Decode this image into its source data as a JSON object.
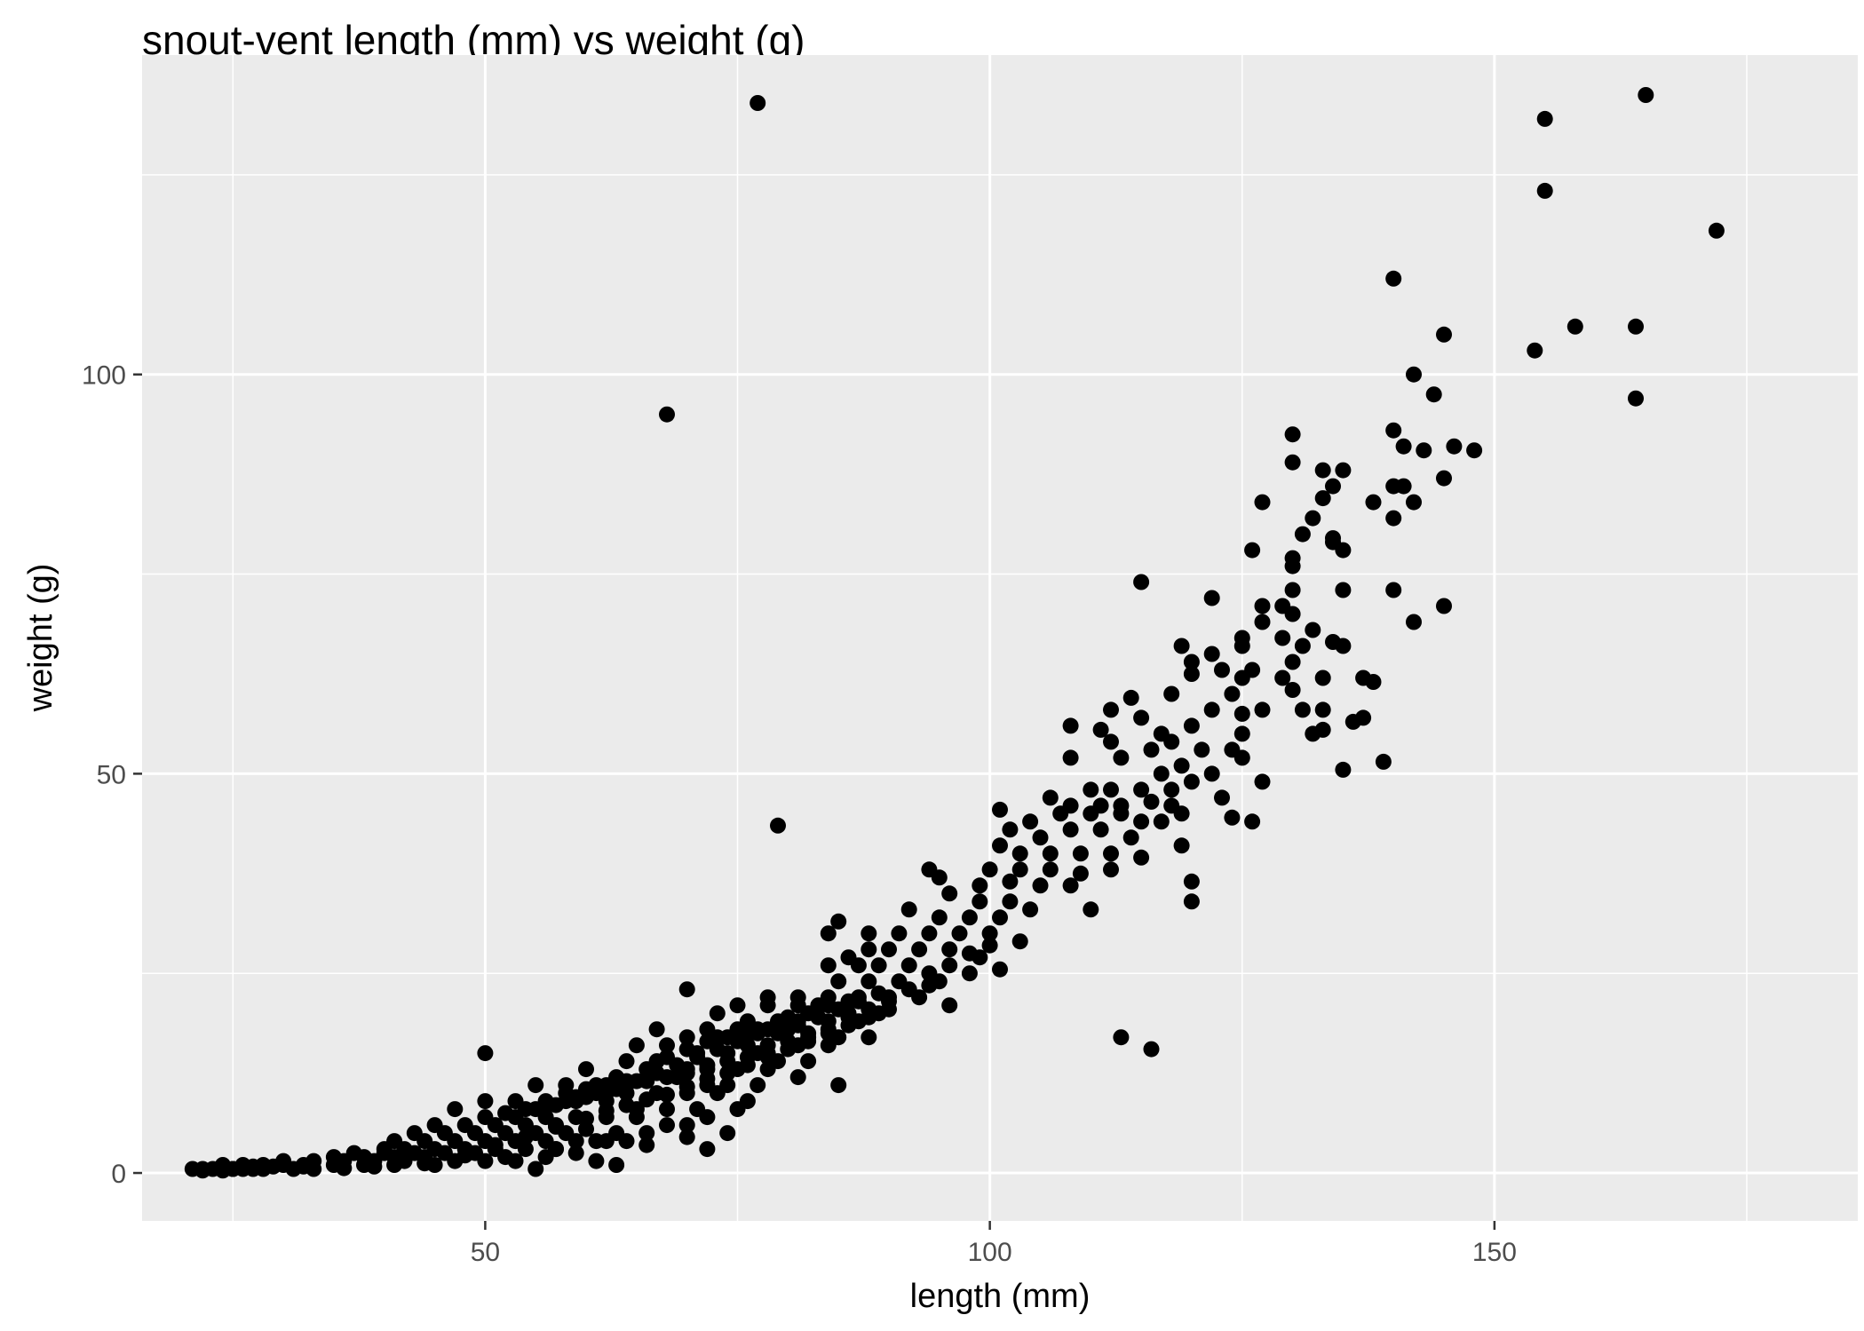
{
  "chart_data": {
    "type": "scatter",
    "title": "snout-vent length (mm) vs weight (g)",
    "xlabel": "length (mm)",
    "ylabel": "weight (g)",
    "xlim": [
      16,
      186
    ],
    "ylim": [
      -6,
      140
    ],
    "x_major_ticks": [
      50,
      100,
      150
    ],
    "x_minor_ticks": [
      25,
      75,
      125,
      175
    ],
    "y_major_ticks": [
      0,
      50,
      100
    ],
    "y_minor_ticks": [
      25,
      75,
      125
    ],
    "grid": true,
    "legend": "none",
    "colors": {
      "panel": "#ebebeb",
      "grid": "#ffffff",
      "point": "#000000",
      "tick_text": "#4d4d4d",
      "tick_mark": "#333333"
    },
    "points": [
      [
        77,
        134
      ],
      [
        165,
        135
      ],
      [
        155,
        132
      ],
      [
        155,
        123
      ],
      [
        172,
        118
      ],
      [
        140,
        112
      ],
      [
        145,
        105
      ],
      [
        158,
        106
      ],
      [
        164,
        106
      ],
      [
        154,
        103
      ],
      [
        142,
        100
      ],
      [
        144,
        97.5
      ],
      [
        164,
        97
      ],
      [
        68,
        95
      ],
      [
        130,
        92.5
      ],
      [
        140,
        93
      ],
      [
        141,
        91
      ],
      [
        143,
        90.5
      ],
      [
        146,
        91
      ],
      [
        148,
        90.5
      ],
      [
        130,
        89
      ],
      [
        133,
        88
      ],
      [
        135,
        88
      ],
      [
        140,
        86
      ],
      [
        141,
        86
      ],
      [
        145,
        87
      ],
      [
        134,
        86
      ],
      [
        138,
        84
      ],
      [
        142,
        84
      ],
      [
        127,
        84
      ],
      [
        133,
        84.5
      ],
      [
        132,
        82
      ],
      [
        140,
        82
      ],
      [
        131,
        80
      ],
      [
        134,
        79
      ],
      [
        134,
        79.5
      ],
      [
        135,
        78
      ],
      [
        126,
        78
      ],
      [
        130,
        77
      ],
      [
        130,
        76
      ],
      [
        115,
        74
      ],
      [
        140,
        73
      ],
      [
        135,
        73
      ],
      [
        130,
        73
      ],
      [
        145,
        71
      ],
      [
        122,
        72
      ],
      [
        127,
        71
      ],
      [
        129,
        71
      ],
      [
        130,
        70
      ],
      [
        127,
        69
      ],
      [
        132,
        68
      ],
      [
        142,
        69
      ],
      [
        129,
        67
      ],
      [
        131,
        66
      ],
      [
        134,
        66.5
      ],
      [
        135,
        66
      ],
      [
        119,
        66
      ],
      [
        125,
        67
      ],
      [
        125,
        66
      ],
      [
        122,
        65
      ],
      [
        126,
        63
      ],
      [
        130,
        64
      ],
      [
        120,
        64
      ],
      [
        123,
        63
      ],
      [
        129,
        62
      ],
      [
        133,
        62
      ],
      [
        137,
        62
      ],
      [
        138,
        61.5
      ],
      [
        120,
        62.5
      ],
      [
        125,
        62
      ],
      [
        130,
        60.5
      ],
      [
        118,
        60
      ],
      [
        114,
        59.5
      ],
      [
        122,
        58
      ],
      [
        124,
        60
      ],
      [
        127,
        58
      ],
      [
        131,
        58
      ],
      [
        133,
        58
      ],
      [
        112,
        58
      ],
      [
        115,
        57
      ],
      [
        125,
        57.5
      ],
      [
        136,
        56.5
      ],
      [
        137,
        57
      ],
      [
        108,
        56
      ],
      [
        111,
        55.5
      ],
      [
        117,
        55
      ],
      [
        120,
        56
      ],
      [
        125,
        55
      ],
      [
        132,
        55
      ],
      [
        133,
        55.5
      ],
      [
        112,
        54
      ],
      [
        116,
        53
      ],
      [
        118,
        54
      ],
      [
        121,
        53
      ],
      [
        124,
        53
      ],
      [
        125,
        52
      ],
      [
        108,
        52
      ],
      [
        113,
        52
      ],
      [
        139,
        51.5
      ],
      [
        135,
        50.5
      ],
      [
        127,
        49
      ],
      [
        117,
        50
      ],
      [
        119,
        51
      ],
      [
        122,
        50
      ],
      [
        110,
        48
      ],
      [
        112,
        48
      ],
      [
        115,
        48
      ],
      [
        118,
        48
      ],
      [
        120,
        49
      ],
      [
        106,
        47
      ],
      [
        108,
        46
      ],
      [
        111,
        46
      ],
      [
        113,
        46
      ],
      [
        116,
        46.5
      ],
      [
        118,
        46
      ],
      [
        123,
        47
      ],
      [
        101,
        45.5
      ],
      [
        104,
        44
      ],
      [
        107,
        45
      ],
      [
        110,
        45
      ],
      [
        113,
        45
      ],
      [
        115,
        44
      ],
      [
        117,
        44
      ],
      [
        119,
        45
      ],
      [
        124,
        44.5
      ],
      [
        126,
        44
      ],
      [
        79,
        43.5
      ],
      [
        102,
        43
      ],
      [
        105,
        42
      ],
      [
        108,
        43
      ],
      [
        111,
        43
      ],
      [
        114,
        42
      ],
      [
        119,
        41
      ],
      [
        101,
        41
      ],
      [
        103,
        40
      ],
      [
        106,
        40
      ],
      [
        109,
        40
      ],
      [
        112,
        40
      ],
      [
        115,
        39.5
      ],
      [
        100,
        38
      ],
      [
        103,
        38
      ],
      [
        106,
        38
      ],
      [
        109,
        37.5
      ],
      [
        112,
        38
      ],
      [
        94,
        38
      ],
      [
        95,
        37
      ],
      [
        99,
        36
      ],
      [
        102,
        36.5
      ],
      [
        105,
        36
      ],
      [
        108,
        36
      ],
      [
        120,
        36.5
      ],
      [
        96,
        35
      ],
      [
        99,
        34
      ],
      [
        102,
        34
      ],
      [
        104,
        33
      ],
      [
        110,
        33
      ],
      [
        120,
        34
      ],
      [
        92,
        33
      ],
      [
        95,
        32
      ],
      [
        98,
        32
      ],
      [
        101,
        32
      ],
      [
        85,
        31.5
      ],
      [
        88,
        30
      ],
      [
        91,
        30
      ],
      [
        94,
        30
      ],
      [
        97,
        30
      ],
      [
        100,
        30
      ],
      [
        103,
        29
      ],
      [
        84,
        30
      ],
      [
        88,
        28
      ],
      [
        90,
        28
      ],
      [
        93,
        28
      ],
      [
        96,
        28
      ],
      [
        99,
        27
      ],
      [
        86,
        27
      ],
      [
        84,
        26
      ],
      [
        87,
        26
      ],
      [
        89,
        26
      ],
      [
        92,
        26
      ],
      [
        94,
        25
      ],
      [
        101,
        25.5
      ],
      [
        85,
        24
      ],
      [
        88,
        24
      ],
      [
        91,
        24
      ],
      [
        95,
        24
      ],
      [
        98,
        25
      ],
      [
        70,
        23
      ],
      [
        78,
        22
      ],
      [
        81,
        22
      ],
      [
        84,
        22
      ],
      [
        87,
        22
      ],
      [
        90,
        22
      ],
      [
        93,
        22
      ],
      [
        75,
        21
      ],
      [
        78,
        21
      ],
      [
        81,
        21
      ],
      [
        83,
        21
      ],
      [
        86,
        20
      ],
      [
        89,
        20
      ],
      [
        96,
        21
      ],
      [
        73,
        20
      ],
      [
        76,
        19
      ],
      [
        79,
        19
      ],
      [
        81,
        19
      ],
      [
        84,
        19
      ],
      [
        87,
        19
      ],
      [
        72,
        18
      ],
      [
        75,
        18
      ],
      [
        77,
        18
      ],
      [
        80,
        18
      ],
      [
        82,
        17
      ],
      [
        85,
        17
      ],
      [
        88,
        17
      ],
      [
        67,
        18
      ],
      [
        70,
        17
      ],
      [
        73,
        17
      ],
      [
        76,
        16
      ],
      [
        78,
        16
      ],
      [
        81,
        16
      ],
      [
        84,
        16
      ],
      [
        113,
        17
      ],
      [
        116,
        15.5
      ],
      [
        50,
        15
      ],
      [
        65,
        16
      ],
      [
        68,
        16
      ],
      [
        71,
        15
      ],
      [
        74,
        15
      ],
      [
        77,
        15
      ],
      [
        79,
        14
      ],
      [
        82,
        14
      ],
      [
        64,
        14
      ],
      [
        67,
        14
      ],
      [
        70,
        13
      ],
      [
        72,
        13
      ],
      [
        75,
        13
      ],
      [
        78,
        13
      ],
      [
        81,
        12
      ],
      [
        60,
        13
      ],
      [
        63,
        12
      ],
      [
        66,
        12
      ],
      [
        69,
        12
      ],
      [
        72,
        11
      ],
      [
        74,
        11
      ],
      [
        85,
        11
      ],
      [
        77,
        11
      ],
      [
        55,
        11
      ],
      [
        58,
        11
      ],
      [
        61,
        11
      ],
      [
        64,
        10
      ],
      [
        67,
        10
      ],
      [
        70,
        10
      ],
      [
        73,
        10
      ],
      [
        76,
        9
      ],
      [
        50,
        9
      ],
      [
        53,
        9
      ],
      [
        56,
        9
      ],
      [
        59,
        9
      ],
      [
        62,
        9
      ],
      [
        65,
        8
      ],
      [
        68,
        8
      ],
      [
        71,
        8
      ],
      [
        75,
        8
      ],
      [
        47,
        8
      ],
      [
        50,
        7
      ],
      [
        53,
        7
      ],
      [
        56,
        7
      ],
      [
        59,
        7
      ],
      [
        62,
        7
      ],
      [
        65,
        7
      ],
      [
        68,
        6
      ],
      [
        70,
        6
      ],
      [
        72,
        7
      ],
      [
        45,
        6
      ],
      [
        48,
        6
      ],
      [
        51,
        6
      ],
      [
        54,
        6
      ],
      [
        57,
        6
      ],
      [
        60,
        5.5
      ],
      [
        63,
        5
      ],
      [
        66,
        5
      ],
      [
        74,
        5
      ],
      [
        43,
        5
      ],
      [
        46,
        5
      ],
      [
        49,
        5
      ],
      [
        52,
        5
      ],
      [
        55,
        5
      ],
      [
        58,
        5
      ],
      [
        61,
        4
      ],
      [
        64,
        4
      ],
      [
        41,
        4
      ],
      [
        44,
        4
      ],
      [
        47,
        4
      ],
      [
        50,
        4
      ],
      [
        53,
        4
      ],
      [
        56,
        4
      ],
      [
        59,
        4
      ],
      [
        40,
        3
      ],
      [
        42,
        3
      ],
      [
        45,
        3
      ],
      [
        48,
        3
      ],
      [
        51,
        3
      ],
      [
        54,
        3
      ],
      [
        57,
        3
      ],
      [
        72,
        3
      ],
      [
        37,
        2.5
      ],
      [
        40,
        2.5
      ],
      [
        43,
        2.5
      ],
      [
        46,
        2.5
      ],
      [
        49,
        2.5
      ],
      [
        52,
        2
      ],
      [
        56,
        2
      ],
      [
        61,
        1.5
      ],
      [
        63,
        1
      ],
      [
        53,
        1.5
      ],
      [
        35,
        2
      ],
      [
        38,
        2
      ],
      [
        41,
        2
      ],
      [
        44,
        2
      ],
      [
        47,
        1.5
      ],
      [
        50,
        1.5
      ],
      [
        55,
        0.5
      ],
      [
        33,
        1.5
      ],
      [
        36,
        1.5
      ],
      [
        39,
        1.5
      ],
      [
        42,
        1.5
      ],
      [
        45,
        1
      ],
      [
        30,
        1.5
      ],
      [
        32,
        1
      ],
      [
        35,
        1
      ],
      [
        38,
        1
      ],
      [
        41,
        1
      ],
      [
        28,
        1
      ],
      [
        30,
        1
      ],
      [
        32,
        0.8
      ],
      [
        26,
        1
      ],
      [
        27,
        0.5
      ],
      [
        29,
        0.8
      ],
      [
        31,
        0.5
      ],
      [
        24,
        1
      ],
      [
        25,
        0.5
      ],
      [
        27,
        0.8
      ],
      [
        22,
        0.5
      ],
      [
        23,
        0.5
      ],
      [
        24,
        0.3
      ],
      [
        25,
        0.5
      ],
      [
        26,
        0.5
      ],
      [
        28,
        0.5
      ],
      [
        21,
        0.5
      ],
      [
        22,
        0.3
      ],
      [
        33,
        0.5
      ],
      [
        36,
        0.6
      ],
      [
        39,
        0.8
      ],
      [
        44,
        1.2
      ],
      [
        48,
        2.2
      ],
      [
        51,
        3.5
      ],
      [
        54,
        4.5
      ],
      [
        57,
        5.8
      ],
      [
        60,
        6.8
      ],
      [
        62,
        7.8
      ],
      [
        64,
        8.5
      ],
      [
        66,
        9.2
      ],
      [
        68,
        9.8
      ],
      [
        70,
        10.8
      ],
      [
        72,
        11.8
      ],
      [
        74,
        12.5
      ],
      [
        76,
        13.5
      ],
      [
        78,
        14.5
      ],
      [
        80,
        15.5
      ],
      [
        82,
        16.5
      ],
      [
        84,
        17.5
      ],
      [
        86,
        18.5
      ],
      [
        88,
        19.5
      ],
      [
        90,
        20.5
      ],
      [
        58,
        10
      ],
      [
        60,
        10.5
      ],
      [
        62,
        11
      ],
      [
        64,
        11.5
      ],
      [
        66,
        13
      ],
      [
        68,
        14.5
      ],
      [
        70,
        15.5
      ],
      [
        72,
        16.5
      ],
      [
        74,
        17
      ],
      [
        76,
        17.5
      ],
      [
        78,
        18
      ],
      [
        80,
        19.5
      ],
      [
        82,
        20
      ],
      [
        84,
        21
      ],
      [
        86,
        21.5
      ],
      [
        55,
        8
      ],
      [
        57,
        8.5
      ],
      [
        59,
        9.5
      ],
      [
        61,
        10
      ],
      [
        63,
        10.5
      ],
      [
        65,
        11.5
      ],
      [
        67,
        12.5
      ],
      [
        69,
        13.5
      ],
      [
        71,
        14.5
      ],
      [
        73,
        15.5
      ],
      [
        75,
        16.5
      ],
      [
        77,
        17.5
      ],
      [
        79,
        17.5
      ],
      [
        81,
        18.5
      ],
      [
        83,
        19.5
      ],
      [
        85,
        20.5
      ],
      [
        87,
        21.5
      ],
      [
        89,
        22.5
      ],
      [
        92,
        23
      ],
      [
        94,
        23.5
      ],
      [
        96,
        26
      ],
      [
        98,
        27.5
      ],
      [
        100,
        28.5
      ],
      [
        52,
        7.5
      ],
      [
        54,
        8
      ],
      [
        56,
        8.5
      ],
      [
        58,
        9
      ],
      [
        60,
        9.5
      ],
      [
        62,
        10
      ],
      [
        64,
        11
      ],
      [
        66,
        11.5
      ],
      [
        68,
        12
      ],
      [
        70,
        12.5
      ],
      [
        72,
        13.5
      ],
      [
        74,
        14
      ],
      [
        76,
        14.5
      ],
      [
        78,
        15
      ],
      [
        80,
        16.5
      ],
      [
        82,
        17.5
      ],
      [
        84,
        18
      ],
      [
        86,
        19.5
      ],
      [
        88,
        20.5
      ],
      [
        90,
        21.5
      ],
      [
        62,
        4
      ],
      [
        66,
        3.5
      ],
      [
        70,
        4.5
      ],
      [
        57,
        3
      ],
      [
        59,
        2.5
      ]
    ]
  }
}
